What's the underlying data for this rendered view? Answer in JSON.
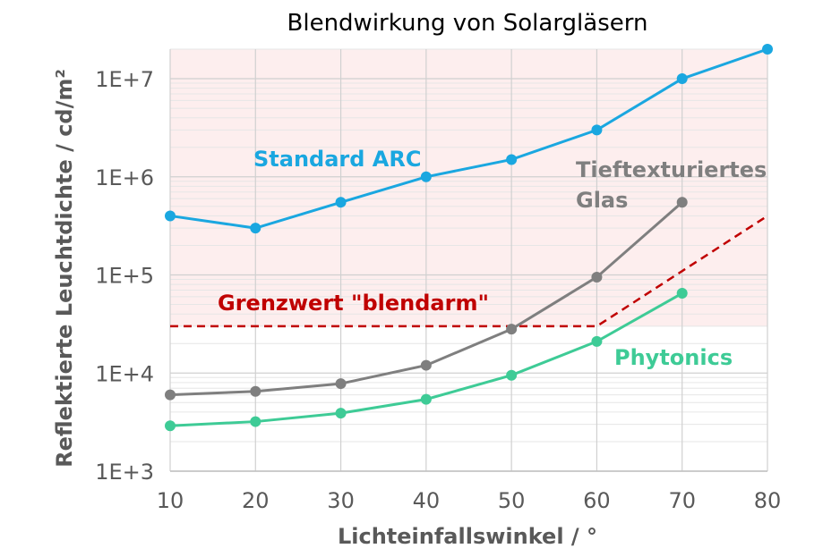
{
  "chart_data": {
    "type": "line",
    "title": "Blendwirkung von Solargläsern",
    "xlabel": "Lichteinfallswinkel / °",
    "ylabel": "Reflektierte Leuchtdichte / cd/m²",
    "x_ticks": [
      "10",
      "20",
      "30",
      "40",
      "50",
      "60",
      "70",
      "80"
    ],
    "y_ticks": [
      "1E+3",
      "1E+4",
      "1E+5",
      "1E+6",
      "1E+7"
    ],
    "xlim": [
      10,
      80
    ],
    "ylim": [
      1000,
      20000000
    ],
    "y_scale": "log",
    "grid": true,
    "glare_zone_color": "#fdeeee",
    "series": [
      {
        "name": "Standard ARC",
        "color": "#1aa7e0",
        "x": [
          10,
          20,
          30,
          40,
          50,
          60,
          70,
          80
        ],
        "values": [
          400000,
          300000,
          550000,
          1000000,
          1500000,
          3000000,
          10000000,
          20000000
        ]
      },
      {
        "name": "Tieftexturiertes Glas",
        "color": "#7f7f7f",
        "x": [
          10,
          20,
          30,
          40,
          50,
          60,
          70
        ],
        "values": [
          6000,
          6500,
          7800,
          12000,
          28000,
          95000,
          550000
        ]
      },
      {
        "name": "Phytonics",
        "color": "#3ecb96",
        "x": [
          10,
          20,
          30,
          40,
          50,
          60,
          70
        ],
        "values": [
          2900,
          3200,
          3900,
          5400,
          9500,
          21000,
          65000
        ]
      }
    ],
    "limit_line": {
      "name": "Grenzwert \"blendarm\"",
      "color": "#c00000",
      "x": [
        10,
        60,
        80
      ],
      "values": [
        30000,
        30000,
        400000
      ]
    },
    "annotations": {
      "standard_arc": "Standard ARC",
      "tief_line1": "Tieftexturiertes",
      "tief_line2": "Glas",
      "grenzwert": "Grenzwert \"blendarm\"",
      "phytonics": "Phytonics"
    }
  }
}
